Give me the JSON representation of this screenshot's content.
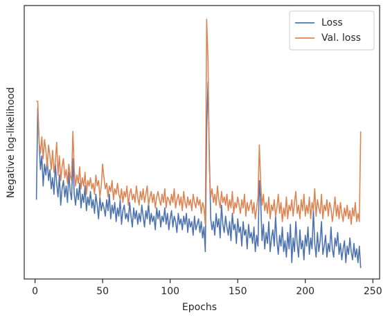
{
  "chart_data": {
    "type": "line",
    "xlabel": "Epochs",
    "ylabel": "Negative log-likelihood",
    "x": [
      1,
      2,
      3,
      4,
      5,
      6,
      7,
      8,
      9,
      10,
      11,
      12,
      13,
      14,
      15,
      16,
      17,
      18,
      19,
      20,
      21,
      22,
      23,
      24,
      25,
      26,
      27,
      28,
      29,
      30,
      31,
      32,
      33,
      34,
      35,
      36,
      37,
      38,
      39,
      40,
      41,
      42,
      43,
      44,
      45,
      46,
      47,
      48,
      49,
      50,
      51,
      52,
      53,
      54,
      55,
      56,
      57,
      58,
      59,
      60,
      61,
      62,
      63,
      64,
      65,
      66,
      67,
      68,
      69,
      70,
      71,
      72,
      73,
      74,
      75,
      76,
      77,
      78,
      79,
      80,
      81,
      82,
      83,
      84,
      85,
      86,
      87,
      88,
      89,
      90,
      91,
      92,
      93,
      94,
      95,
      96,
      97,
      98,
      99,
      100,
      101,
      102,
      103,
      104,
      105,
      106,
      107,
      108,
      109,
      110,
      111,
      112,
      113,
      114,
      115,
      116,
      117,
      118,
      119,
      120,
      121,
      122,
      123,
      124,
      125,
      126,
      127,
      128,
      129,
      130,
      131,
      132,
      133,
      134,
      135,
      136,
      137,
      138,
      139,
      140,
      141,
      142,
      143,
      144,
      145,
      146,
      147,
      148,
      149,
      150,
      151,
      152,
      153,
      154,
      155,
      156,
      157,
      158,
      159,
      160,
      161,
      162,
      163,
      164,
      165,
      166,
      167,
      168,
      169,
      170,
      171,
      172,
      173,
      174,
      175,
      176,
      177,
      178,
      179,
      180,
      181,
      182,
      183,
      184,
      185,
      186,
      187,
      188,
      189,
      190,
      191,
      192,
      193,
      194,
      195,
      196,
      197,
      198,
      199,
      200,
      201,
      202,
      203,
      204,
      205,
      206,
      207,
      208,
      209,
      210,
      211,
      212,
      213,
      214,
      215,
      216,
      217,
      218,
      219,
      220,
      221,
      222,
      223,
      224,
      225,
      226,
      227,
      228,
      229,
      230,
      231,
      232,
      233,
      234,
      235,
      236,
      237,
      238,
      239,
      240,
      241
    ],
    "series": [
      {
        "name": "Loss",
        "color": "#4c72b0",
        "values": [
          29,
          63,
          50,
          40,
          45,
          34,
          42,
          38,
          44,
          36,
          40,
          33,
          37,
          31,
          42,
          35,
          30,
          38,
          27,
          33,
          36,
          30,
          34,
          28,
          39,
          32,
          29,
          44,
          31,
          27,
          33,
          29,
          35,
          26,
          31,
          28,
          34,
          25,
          30,
          27,
          32,
          26,
          29,
          24,
          31,
          27,
          22,
          30,
          25,
          28,
          26,
          23,
          29,
          25,
          31,
          22,
          27,
          24,
          28,
          21,
          26,
          23,
          29,
          20,
          25,
          27,
          22,
          24,
          21,
          28,
          23,
          19,
          26,
          22,
          25,
          20,
          24,
          21,
          27,
          23,
          19,
          25,
          22,
          28,
          20,
          24,
          21,
          23,
          18,
          26,
          22,
          25,
          19,
          23,
          21,
          26,
          20,
          24,
          18,
          22,
          25,
          19,
          23,
          21,
          17,
          24,
          20,
          22,
          18,
          23,
          20,
          24,
          17,
          22,
          19,
          21,
          16,
          23,
          18,
          20,
          22,
          17,
          21,
          15,
          19,
          10,
          55,
          72,
          45,
          22,
          18,
          21,
          16,
          24,
          19,
          22,
          15,
          27,
          20,
          17,
          23,
          19,
          16,
          21,
          14,
          24,
          18,
          20,
          13,
          22,
          17,
          19,
          12,
          21,
          16,
          18,
          11,
          20,
          15,
          17,
          13,
          19,
          10,
          16,
          12,
          36,
          28,
          14,
          20,
          11,
          17,
          13,
          21,
          10,
          15,
          18,
          12,
          23,
          14,
          9,
          16,
          12,
          19,
          10,
          14,
          8,
          17,
          11,
          20,
          6,
          15,
          10,
          21,
          13,
          8,
          18,
          11,
          14,
          7,
          16,
          12,
          19,
          9,
          15,
          11,
          25,
          13,
          8,
          17,
          10,
          14,
          21,
          9,
          12,
          16,
          8,
          13,
          10,
          19,
          11,
          8,
          15,
          12,
          17,
          9,
          13,
          7,
          11,
          14,
          6,
          12,
          9,
          15,
          10,
          7,
          13,
          8,
          11,
          6,
          12,
          4
        ]
      },
      {
        "name": "Val. loss",
        "color": "#dd8452",
        "values": [
          65,
          65,
          50,
          46,
          52,
          44,
          51,
          47,
          41,
          49,
          45,
          40,
          47,
          39,
          43,
          50,
          38,
          45,
          36,
          41,
          44,
          37,
          40,
          35,
          42,
          38,
          36,
          54,
          40,
          34,
          38,
          35,
          41,
          33,
          37,
          34,
          39,
          31,
          36,
          34,
          37,
          33,
          35,
          31,
          38,
          34,
          36,
          30,
          34,
          42,
          37,
          33,
          35,
          30,
          34,
          32,
          36,
          29,
          33,
          31,
          35,
          31,
          29,
          33,
          28,
          32,
          30,
          34,
          27,
          31,
          33,
          29,
          31,
          28,
          34,
          30,
          27,
          32,
          29,
          33,
          28,
          31,
          34,
          27,
          30,
          32,
          28,
          31,
          26,
          30,
          32,
          29,
          27,
          31,
          28,
          33,
          26,
          30,
          29,
          27,
          31,
          28,
          33,
          26,
          29,
          31,
          27,
          30,
          25,
          32,
          28,
          26,
          30,
          27,
          29,
          25,
          31,
          28,
          26,
          30,
          27,
          29,
          24,
          28,
          26,
          20,
          95,
          80,
          40,
          30,
          33,
          28,
          31,
          27,
          34,
          29,
          26,
          32,
          28,
          30,
          27,
          31,
          25,
          29,
          26,
          32,
          24,
          28,
          26,
          30,
          27,
          24,
          29,
          26,
          31,
          23,
          28,
          25,
          27,
          29,
          24,
          28,
          22,
          26,
          30,
          49,
          35,
          27,
          31,
          25,
          28,
          24,
          30,
          22,
          27,
          25,
          29,
          23,
          26,
          31,
          24,
          28,
          21,
          26,
          23,
          30,
          22,
          27,
          25,
          29,
          23,
          28,
          32,
          24,
          27,
          22,
          29,
          25,
          31,
          23,
          27,
          24,
          30,
          22,
          28,
          25,
          33,
          23,
          29,
          26,
          24,
          31,
          22,
          27,
          25,
          29,
          23,
          28,
          26,
          21,
          25,
          30,
          23,
          27,
          22,
          28,
          24,
          21,
          26,
          23,
          27,
          22,
          25,
          20,
          26,
          23,
          28,
          21,
          24,
          21,
          54
        ]
      }
    ],
    "xlim": [
      -8,
      255
    ],
    "xticks": [
      0,
      50,
      100,
      150,
      200,
      250
    ],
    "ylim": [
      0,
      100
    ],
    "yticks": [],
    "legend": "upper right",
    "grid": false
  }
}
